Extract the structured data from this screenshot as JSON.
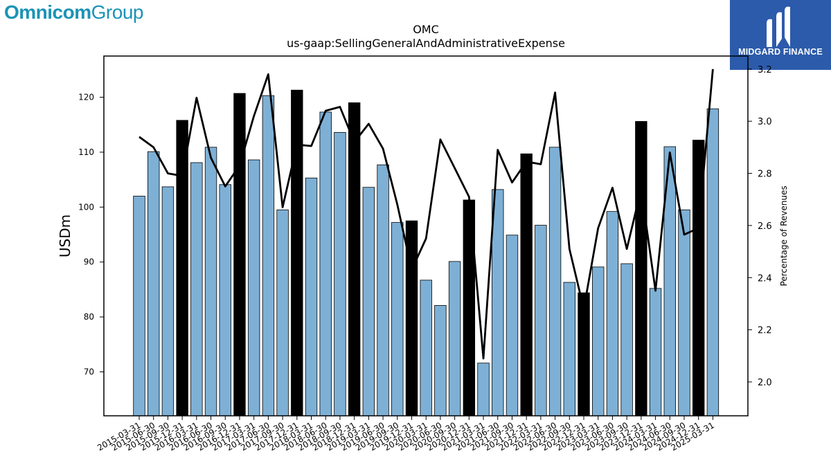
{
  "brands": {
    "omnicom": {
      "part1": "Omnicom",
      "part2": "Group"
    },
    "midgard": {
      "label": "MIDGARD FINANCE"
    }
  },
  "colors": {
    "bar": "#7eb0d5",
    "bar_highlight": "#000000",
    "line": "#000000",
    "brand_omnicom": "#1b93b6",
    "brand_midgard": "#2c5bab"
  },
  "chart_data": {
    "type": "bar",
    "title": "OMC",
    "subtitle": "us-gaap:SellingGeneralAndAdministrativeExpense",
    "ylabel": "USDm",
    "y2label": "Percentage of Revenues",
    "ylim": [
      62,
      127.5
    ],
    "y2lim": [
      1.87,
      3.25
    ],
    "yticks": [
      70,
      80,
      90,
      100,
      110,
      120
    ],
    "y2ticks": [
      2.0,
      2.2,
      2.4,
      2.6,
      2.8,
      3.0,
      3.2
    ],
    "categories": [
      "2015-03-31",
      "2015-06-30",
      "2015-09-30",
      "2015-12-31",
      "2016-03-31",
      "2016-06-30",
      "2016-09-30",
      "2016-12-31",
      "2017-03-31",
      "2017-06-30",
      "2017-09-30",
      "2017-12-31",
      "2018-03-31",
      "2018-06-30",
      "2018-09-30",
      "2018-12-31",
      "2019-03-31",
      "2019-06-30",
      "2019-09-30",
      "2019-12-31",
      "2020-03-31",
      "2020-06-30",
      "2020-09-30",
      "2020-12-31",
      "2021-03-31",
      "2021-06-30",
      "2021-09-30",
      "2021-12-31",
      "2022-03-31",
      "2022-06-30",
      "2022-09-30",
      "2022-12-31",
      "2023-03-31",
      "2023-06-30",
      "2023-09-30",
      "2023-12-31",
      "2024-03-31",
      "2024-06-30",
      "2024-09-30",
      "2024-12-31",
      "2025-03-31"
    ],
    "series": [
      {
        "type": "bar",
        "values": [
          102.0,
          110.1,
          103.7,
          115.8,
          108.1,
          110.9,
          104.1,
          120.7,
          108.6,
          120.3,
          99.5,
          121.3,
          105.3,
          117.3,
          113.6,
          119.0,
          103.6,
          107.7,
          97.2,
          97.5,
          86.7,
          82.1,
          90.1,
          101.3,
          71.6,
          103.2,
          94.9,
          109.7,
          96.7,
          110.9,
          86.3,
          84.4,
          89.1,
          99.2,
          89.7,
          115.6,
          85.2,
          111.0,
          99.5,
          112.2,
          117.9
        ],
        "highlighted": [
          false,
          false,
          false,
          true,
          false,
          false,
          false,
          true,
          false,
          false,
          false,
          true,
          false,
          false,
          false,
          true,
          false,
          false,
          false,
          true,
          false,
          false,
          false,
          true,
          false,
          false,
          false,
          true,
          false,
          false,
          false,
          true,
          false,
          false,
          false,
          true,
          false,
          false,
          false,
          true,
          false
        ]
      },
      {
        "type": "line",
        "axis": "right",
        "values": [
          2.94,
          2.9,
          2.8,
          2.79,
          3.09,
          2.86,
          2.75,
          2.83,
          3.02,
          3.18,
          2.67,
          2.91,
          2.905,
          3.04,
          3.055,
          2.92,
          2.99,
          2.895,
          2.68,
          2.43,
          2.55,
          2.93,
          2.82,
          2.71,
          2.09,
          2.89,
          2.765,
          2.845,
          2.835,
          3.11,
          2.51,
          2.28,
          2.59,
          2.745,
          2.51,
          2.74,
          2.35,
          2.88,
          2.565,
          2.59,
          3.2
        ]
      }
    ],
    "grid": false,
    "legend": "none"
  }
}
